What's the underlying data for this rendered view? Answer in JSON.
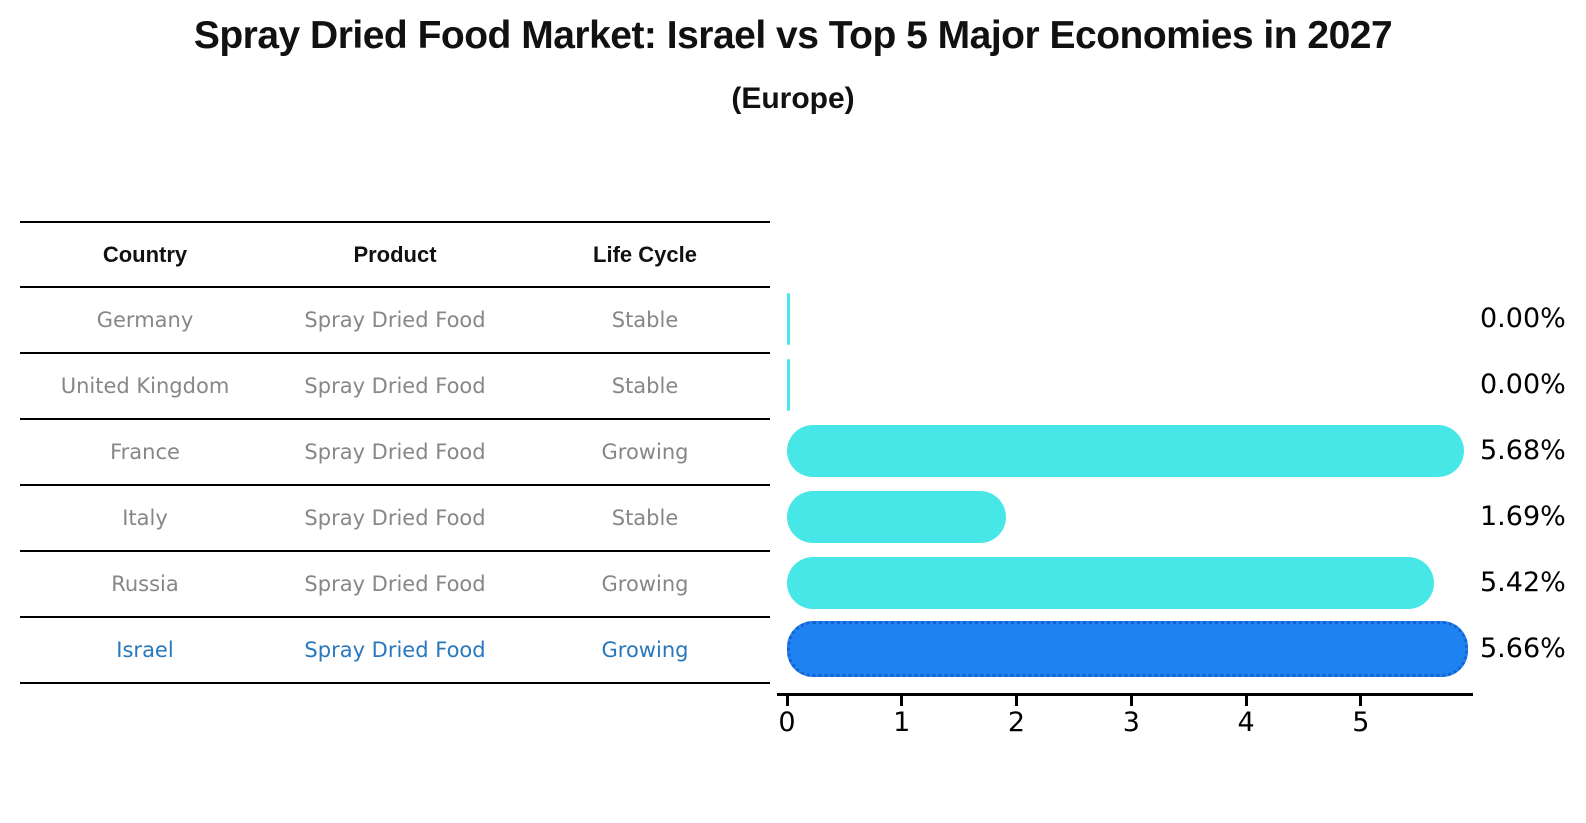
{
  "title": "Spray Dried Food Market: Israel vs Top 5 Major Economies in 2027",
  "subtitle": "(Europe)",
  "table": {
    "headers": [
      "Country",
      "Product",
      "Life Cycle"
    ],
    "rows": [
      {
        "country": "Germany",
        "product": "Spray Dried Food",
        "life_cycle": "Stable",
        "highlight": false
      },
      {
        "country": "United Kingdom",
        "product": "Spray Dried Food",
        "life_cycle": "Stable",
        "highlight": false
      },
      {
        "country": "France",
        "product": "Spray Dried Food",
        "life_cycle": "Growing",
        "highlight": false
      },
      {
        "country": "Italy",
        "product": "Spray Dried Food",
        "life_cycle": "Stable",
        "highlight": false
      },
      {
        "country": "Russia",
        "product": "Spray Dried Food",
        "life_cycle": "Growing",
        "highlight": false
      },
      {
        "country": "Israel",
        "product": "Spray Dried Food",
        "life_cycle": "Growing",
        "highlight": true
      }
    ]
  },
  "chart_data": {
    "type": "bar",
    "orientation": "horizontal",
    "title": "Spray Dried Food Market: Israel vs Top 5 Major Economies in 2027 (Europe)",
    "categories": [
      "Germany",
      "United Kingdom",
      "France",
      "Italy",
      "Russia",
      "Israel"
    ],
    "values": [
      0.0,
      0.0,
      5.68,
      1.69,
      5.42,
      5.66
    ],
    "value_labels": [
      "0.00%",
      "0.00%",
      "5.68%",
      "1.69%",
      "5.42%",
      "5.66%"
    ],
    "xticks": [
      0,
      1,
      2,
      3,
      4,
      5
    ],
    "xlim": [
      0,
      5.96
    ],
    "grid": false,
    "legend": false,
    "highlight_category": "Israel",
    "bar_color": "#48e7e7",
    "highlight_bar_color": "#1e82f0",
    "highlight_border_color": "#1563d2",
    "highlight_text_color": "#2878be",
    "table_text_color": "#878787",
    "axis_color": "#000000"
  }
}
